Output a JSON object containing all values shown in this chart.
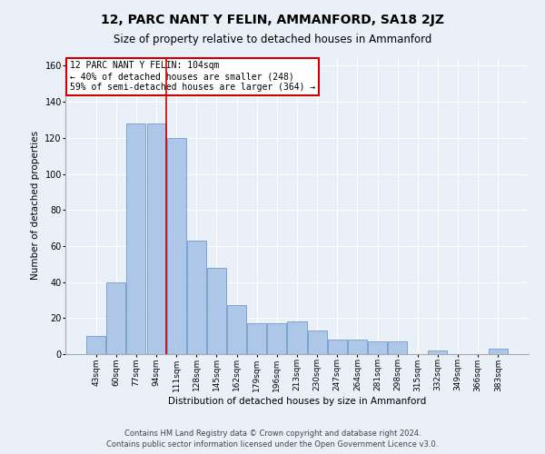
{
  "title": "12, PARC NANT Y FELIN, AMMANFORD, SA18 2JZ",
  "subtitle": "Size of property relative to detached houses in Ammanford",
  "xlabel": "Distribution of detached houses by size in Ammanford",
  "ylabel": "Number of detached properties",
  "categories": [
    "43sqm",
    "60sqm",
    "77sqm",
    "94sqm",
    "111sqm",
    "128sqm",
    "145sqm",
    "162sqm",
    "179sqm",
    "196sqm",
    "213sqm",
    "230sqm",
    "247sqm",
    "264sqm",
    "281sqm",
    "298sqm",
    "315sqm",
    "332sqm",
    "349sqm",
    "366sqm",
    "383sqm"
  ],
  "values": [
    10,
    40,
    128,
    128,
    120,
    63,
    48,
    27,
    17,
    17,
    18,
    13,
    8,
    8,
    7,
    7,
    0,
    2,
    0,
    0,
    3
  ],
  "bar_color": "#aec6e8",
  "bar_edge_color": "#5a8fc2",
  "reference_line_x": 3.5,
  "annotation_text_line1": "12 PARC NANT Y FELIN: 104sqm",
  "annotation_text_line2": "← 40% of detached houses are smaller (248)",
  "annotation_text_line3": "59% of semi-detached houses are larger (364) →",
  "annotation_box_color": "#ffffff",
  "annotation_border_color": "#cc0000",
  "vline_color": "#cc0000",
  "ylim": [
    0,
    165
  ],
  "yticks": [
    0,
    20,
    40,
    60,
    80,
    100,
    120,
    140,
    160
  ],
  "footer_line1": "Contains HM Land Registry data © Crown copyright and database right 2024.",
  "footer_line2": "Contains public sector information licensed under the Open Government Licence v3.0.",
  "bg_color": "#eaf0f8",
  "title_fontsize": 10,
  "subtitle_fontsize": 8.5,
  "axis_label_fontsize": 7.5,
  "tick_fontsize": 6.5,
  "footer_fontsize": 6,
  "annotation_fontsize": 7
}
